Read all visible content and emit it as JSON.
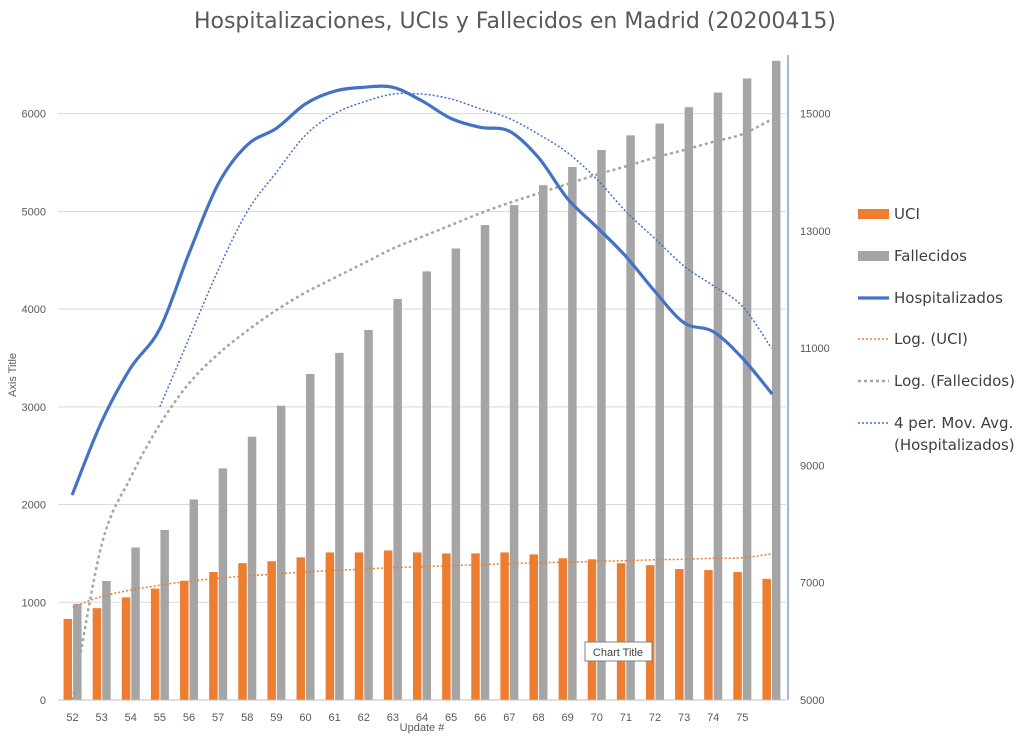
{
  "chart_data": {
    "type": "bar",
    "title": "Hospitalizaciones, UCIs y Fallecidos en Madrid (20200415)",
    "xlabel": "Update #",
    "ylabel": "Axis Title",
    "ylim": [
      0,
      6600
    ],
    "y2lim": [
      5000,
      16000
    ],
    "y_ticks": [
      "0",
      "1000",
      "2000",
      "3000",
      "4000",
      "5000",
      "6000"
    ],
    "y2_ticks": [
      "5000",
      "7000",
      "9000",
      "11000",
      "13000",
      "15000"
    ],
    "categories": [
      "52",
      "53",
      "54",
      "55",
      "56",
      "57",
      "58",
      "59",
      "60",
      "61",
      "62",
      "63",
      "64",
      "65",
      "66",
      "67",
      "68",
      "69",
      "70",
      "71",
      "72",
      "73",
      "74",
      "75",
      ""
    ],
    "series": [
      {
        "name": "UCI",
        "type": "bar",
        "axis": "left",
        "color": "#ED7D31",
        "values": [
          830,
          940,
          1050,
          1140,
          1220,
          1310,
          1400,
          1420,
          1460,
          1510,
          1510,
          1530,
          1510,
          1500,
          1500,
          1510,
          1490,
          1450,
          1440,
          1400,
          1380,
          1340,
          1330,
          1310,
          1240
        ]
      },
      {
        "name": "Fallecidos",
        "type": "bar",
        "axis": "right",
        "color": "#A5A5A5",
        "values": [
          6640,
          7030,
          7600,
          7900,
          8420,
          8950,
          9490,
          10020,
          10560,
          10920,
          11310,
          11840,
          12310,
          12700,
          13100,
          13440,
          13780,
          14090,
          14380,
          14630,
          14830,
          15110,
          15360,
          15600,
          15900
        ]
      },
      {
        "name": "Hospitalizados",
        "type": "line",
        "axis": "left",
        "color": "#4472C4",
        "values": [
          2110,
          2850,
          3400,
          3800,
          4570,
          5280,
          5680,
          5850,
          6100,
          6230,
          6270,
          6270,
          6130,
          5950,
          5860,
          5820,
          5550,
          5130,
          4840,
          4540,
          4180,
          3860,
          3770,
          3500,
          3140
        ]
      },
      {
        "name": "Log. (UCI)",
        "type": "trend",
        "axis": "left",
        "color": "#ED7D31",
        "dash": "dotted",
        "values": [
          950,
          1060,
          1125,
          1175,
          1215,
          1245,
          1270,
          1290,
          1310,
          1325,
          1340,
          1355,
          1365,
          1375,
          1385,
          1395,
          1405,
          1410,
          1420,
          1425,
          1435,
          1440,
          1450,
          1455,
          1495
        ]
      },
      {
        "name": "Log. (Fallecidos)",
        "type": "trend",
        "axis": "right",
        "color": "#A5A5A5",
        "dash": "dotted",
        "values": [
          5000,
          7650,
          8800,
          9700,
          10400,
          10900,
          11300,
          11650,
          11950,
          12200,
          12450,
          12700,
          12900,
          13100,
          13300,
          13480,
          13640,
          13800,
          13960,
          14100,
          14250,
          14380,
          14520,
          14650,
          14900
        ]
      },
      {
        "name": "4 per. Mov. Avg.\n(Hospitalizados)",
        "type": "trend",
        "axis": "left",
        "color": "#4472C4",
        "dash": "dotted",
        "values": [
          null,
          null,
          null,
          3000,
          3700,
          4400,
          5000,
          5400,
          5780,
          6000,
          6120,
          6200,
          6200,
          6150,
          6050,
          5950,
          5790,
          5600,
          5330,
          5000,
          4720,
          4440,
          4240,
          4030,
          3600
        ]
      }
    ],
    "legend_position": "right",
    "grid": true,
    "annotation": "Chart Title"
  }
}
